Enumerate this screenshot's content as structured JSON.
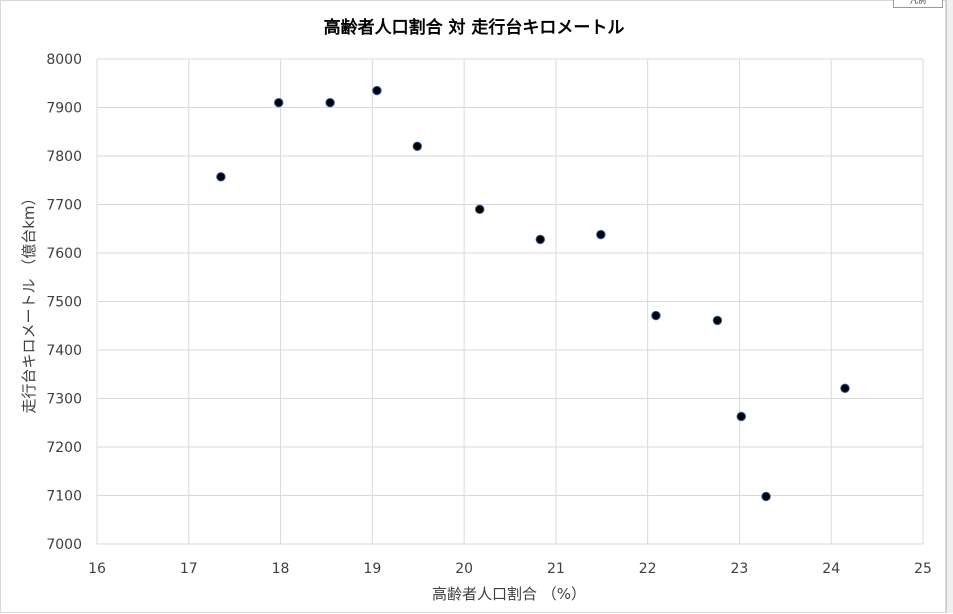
{
  "chart_data": {
    "type": "scatter",
    "title": "高齢者人口割合 対  走行台キロメートル",
    "xlabel": "高齢者人口割合 （%）",
    "ylabel": "走行台キロメートル （億台km）",
    "xlim": [
      16,
      25
    ],
    "ylim": [
      7000,
      8000
    ],
    "x_ticks": [
      "16",
      "17",
      "18",
      "19",
      "20",
      "21",
      "22",
      "23",
      "24",
      "25"
    ],
    "y_ticks": [
      "7000",
      "7100",
      "7200",
      "7300",
      "7400",
      "7500",
      "7600",
      "7700",
      "7800",
      "7900",
      "8000"
    ],
    "grid": true,
    "legend": "none",
    "marker_color": "#000000",
    "series": [
      {
        "points": [
          {
            "x": 17.35,
            "y": 7757
          },
          {
            "x": 17.98,
            "y": 7910
          },
          {
            "x": 18.54,
            "y": 7910
          },
          {
            "x": 19.05,
            "y": 7935
          },
          {
            "x": 19.49,
            "y": 7820
          },
          {
            "x": 20.17,
            "y": 7690
          },
          {
            "x": 20.83,
            "y": 7628
          },
          {
            "x": 21.49,
            "y": 7638
          },
          {
            "x": 22.09,
            "y": 7471
          },
          {
            "x": 22.76,
            "y": 7461
          },
          {
            "x": 23.02,
            "y": 7263
          },
          {
            "x": 23.29,
            "y": 7098
          },
          {
            "x": 24.15,
            "y": 7321
          }
        ]
      }
    ]
  },
  "corner_tab_label": "凡例"
}
